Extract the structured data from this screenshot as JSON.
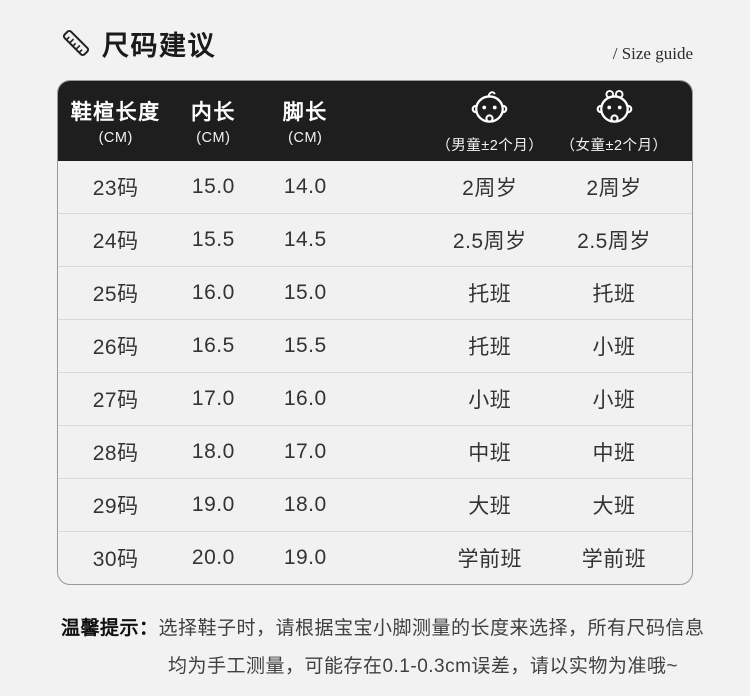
{
  "header": {
    "title": "尺码建议",
    "subtitle": "/ Size guide"
  },
  "chart_data": {
    "type": "table",
    "title": "尺码建议",
    "columns": [
      {
        "label": "鞋楦长度",
        "unit": "(CM)"
      },
      {
        "label": "内长",
        "unit": "(CM)"
      },
      {
        "label": "脚长",
        "unit": "(CM)"
      },
      {
        "label": "（男童±2个月）",
        "icon": "baby-boy-icon"
      },
      {
        "label": "（女童±2个月）",
        "icon": "baby-girl-icon"
      }
    ],
    "rows": [
      [
        "23码",
        "15.0",
        "14.0",
        "2周岁",
        "2周岁"
      ],
      [
        "24码",
        "15.5",
        "14.5",
        "2.5周岁",
        "2.5周岁"
      ],
      [
        "25码",
        "16.0",
        "15.0",
        "托班",
        "托班"
      ],
      [
        "26码",
        "16.5",
        "15.5",
        "托班",
        "小班"
      ],
      [
        "27码",
        "17.0",
        "16.0",
        "小班",
        "小班"
      ],
      [
        "28码",
        "18.0",
        "17.0",
        "中班",
        "中班"
      ],
      [
        "29码",
        "19.0",
        "18.0",
        "大班",
        "大班"
      ],
      [
        "30码",
        "20.0",
        "19.0",
        "学前班",
        "学前班"
      ]
    ]
  },
  "tips": {
    "label": "温馨提示：",
    "line1": "选择鞋子时，请根据宝宝小脚测量的长度来选择，所有尺码信息",
    "line2": "均为手工测量，可能存在0.1-0.3cm误差，请以实物为准哦~"
  },
  "colors": {
    "page_bg": "#f2f2f2",
    "table_header_bg": "#1e1e1e",
    "table_header_text": "#ffffff",
    "row_text": "#333333",
    "divider": "#d8d8d8",
    "card_border": "#9a9a9a",
    "title_text": "#1a1a1a",
    "tips_text": "#404040"
  }
}
